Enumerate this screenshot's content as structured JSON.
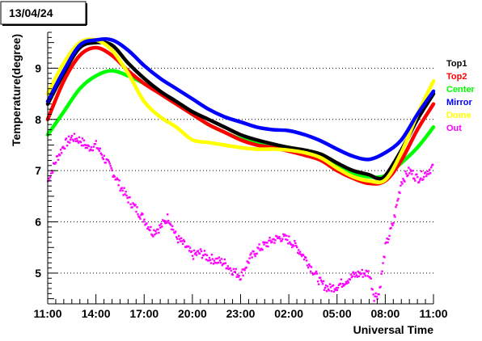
{
  "date_label": "13/04/24",
  "chart_data": {
    "type": "line",
    "xlabel": "Universal Time",
    "ylabel": "Temperature(degree)",
    "x_range_hours": [
      11,
      35
    ],
    "xticks": [
      {
        "h": 11,
        "label": "11:00"
      },
      {
        "h": 14,
        "label": "14:00"
      },
      {
        "h": 17,
        "label": "17:00"
      },
      {
        "h": 20,
        "label": "20:00"
      },
      {
        "h": 23,
        "label": "23:00"
      },
      {
        "h": 26,
        "label": "02:00"
      },
      {
        "h": 29,
        "label": "05:00"
      },
      {
        "h": 32,
        "label": "08:00"
      },
      {
        "h": 35,
        "label": "11:00"
      }
    ],
    "ylim": [
      4.4,
      9.7
    ],
    "yticks": [
      5,
      6,
      7,
      8,
      9
    ],
    "grid": true,
    "legend_position": "right",
    "series": [
      {
        "name": "Top1",
        "color": "#000000",
        "x": [
          11,
          12,
          13,
          14,
          15,
          16,
          17,
          18,
          19,
          20,
          21,
          22,
          23,
          24,
          25,
          26,
          27,
          28,
          29,
          30,
          31,
          31.5,
          32,
          33,
          34,
          35
        ],
        "y": [
          8.3,
          8.9,
          9.4,
          9.5,
          9.45,
          9.1,
          8.8,
          8.55,
          8.35,
          8.15,
          8.0,
          7.85,
          7.7,
          7.6,
          7.52,
          7.45,
          7.4,
          7.32,
          7.15,
          7.0,
          6.92,
          6.85,
          6.9,
          7.4,
          8.0,
          8.5
        ]
      },
      {
        "name": "Top2",
        "color": "#ff0000",
        "x": [
          11,
          12,
          13,
          14,
          15,
          16,
          17,
          18,
          19,
          20,
          21,
          22,
          23,
          24,
          25,
          26,
          27,
          28,
          29,
          30,
          31,
          32,
          33,
          34,
          35
        ],
        "y": [
          8.0,
          8.75,
          9.25,
          9.4,
          9.25,
          8.95,
          8.7,
          8.5,
          8.3,
          8.1,
          7.9,
          7.75,
          7.6,
          7.5,
          7.45,
          7.38,
          7.3,
          7.2,
          7.0,
          6.85,
          6.75,
          6.8,
          7.2,
          7.8,
          8.3
        ]
      },
      {
        "name": "Center",
        "color": "#00ff00",
        "x": [
          11,
          12,
          13,
          14,
          15,
          16,
          17,
          18,
          19,
          20,
          21,
          22,
          23,
          24,
          25,
          26,
          27,
          28,
          29,
          30,
          31,
          32,
          33,
          34,
          35
        ],
        "y": [
          7.7,
          8.15,
          8.6,
          8.85,
          8.95,
          8.85,
          8.7,
          8.5,
          8.3,
          8.1,
          7.9,
          7.75,
          7.62,
          7.55,
          7.5,
          7.45,
          7.38,
          7.25,
          7.08,
          6.95,
          6.88,
          6.9,
          7.15,
          7.45,
          7.85
        ]
      },
      {
        "name": "Mirror",
        "color": "#0000ff",
        "x": [
          11,
          12,
          13,
          14,
          15,
          16,
          17,
          18,
          19,
          20,
          21,
          22,
          23,
          24,
          25,
          26,
          27,
          28,
          29,
          30,
          31,
          32,
          33,
          34,
          35
        ],
        "y": [
          8.35,
          8.95,
          9.45,
          9.55,
          9.55,
          9.35,
          9.05,
          8.8,
          8.6,
          8.4,
          8.2,
          8.05,
          7.95,
          7.85,
          7.8,
          7.78,
          7.7,
          7.58,
          7.42,
          7.28,
          7.22,
          7.35,
          7.6,
          8.1,
          8.55
        ]
      },
      {
        "name": "Dome",
        "color": "#ffff00",
        "x": [
          11,
          12,
          13,
          14,
          15,
          16,
          17,
          18,
          19,
          20,
          21,
          22,
          23,
          24,
          25,
          26,
          27,
          28,
          29,
          30,
          31,
          32,
          33,
          34,
          35
        ],
        "y": [
          8.5,
          9.1,
          9.5,
          9.55,
          9.35,
          8.9,
          8.35,
          8.05,
          7.85,
          7.6,
          7.55,
          7.5,
          7.45,
          7.42,
          7.42,
          7.4,
          7.35,
          7.25,
          7.05,
          6.88,
          6.8,
          6.82,
          7.35,
          8.1,
          8.75
        ]
      },
      {
        "name": "Out",
        "color": "#ff00ff",
        "x": [
          11,
          11.5,
          12,
          12.5,
          13,
          13.5,
          14,
          14.5,
          15,
          15.5,
          16,
          16.5,
          17,
          17.5,
          18,
          18.5,
          19,
          19.5,
          20,
          20.5,
          21,
          21.5,
          22,
          22.5,
          23,
          23.5,
          24,
          24.5,
          25,
          25.5,
          26,
          26.5,
          27,
          27.5,
          28,
          28.5,
          29,
          29.5,
          30,
          30.5,
          31,
          31.3,
          31.6,
          32,
          32.5,
          33,
          33.5,
          34,
          34.5,
          35
        ],
        "y": [
          6.8,
          7.2,
          7.5,
          7.65,
          7.6,
          7.45,
          7.5,
          7.25,
          7.0,
          6.7,
          6.45,
          6.25,
          6.05,
          5.8,
          5.9,
          6.1,
          5.7,
          5.55,
          5.35,
          5.4,
          5.3,
          5.25,
          5.2,
          5.05,
          4.95,
          5.25,
          5.45,
          5.55,
          5.65,
          5.7,
          5.65,
          5.5,
          5.3,
          5.05,
          4.8,
          4.7,
          4.75,
          4.85,
          4.95,
          5.0,
          5.0,
          4.55,
          4.6,
          5.5,
          6.0,
          6.8,
          7.0,
          6.85,
          6.95,
          7.1
        ]
      }
    ]
  }
}
